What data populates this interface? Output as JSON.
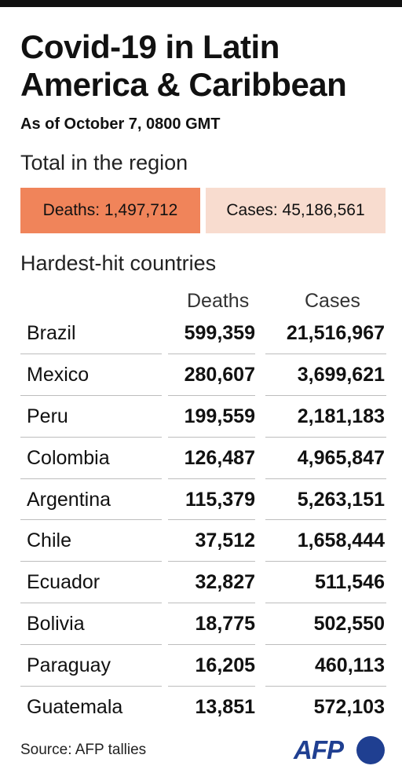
{
  "title": "Covid-19 in Latin America & Caribbean",
  "subtitle": "As of October 7, 0800 GMT",
  "region_label": "Total in the region",
  "totals": {
    "deaths_label": "Deaths: 1,497,712",
    "cases_label": "Cases: 45,186,561"
  },
  "colors": {
    "deaths_box": "#f0845a",
    "cases_box": "#f8dccf",
    "logo_text": "#1f3f91",
    "logo_circle": "#1f3f91"
  },
  "hardest_label": "Hardest-hit countries",
  "table": {
    "headers": [
      "Deaths",
      "Cases"
    ],
    "rows": [
      {
        "country": "Brazil",
        "deaths": "599,359",
        "cases": "21,516,967"
      },
      {
        "country": "Mexico",
        "deaths": "280,607",
        "cases": "3,699,621"
      },
      {
        "country": "Peru",
        "deaths": "199,559",
        "cases": "2,181,183"
      },
      {
        "country": "Colombia",
        "deaths": "126,487",
        "cases": "4,965,847"
      },
      {
        "country": "Argentina",
        "deaths": "115,379",
        "cases": "5,263,151"
      },
      {
        "country": "Chile",
        "deaths": "37,512",
        "cases": "1,658,444"
      },
      {
        "country": "Ecuador",
        "deaths": "32,827",
        "cases": "511,546"
      },
      {
        "country": "Bolivia",
        "deaths": "18,775",
        "cases": "502,550"
      },
      {
        "country": "Paraguay",
        "deaths": "16,205",
        "cases": "460,113"
      },
      {
        "country": "Guatemala",
        "deaths": "13,851",
        "cases": "572,103"
      }
    ]
  },
  "source": "Source: AFP tallies",
  "logo": {
    "text": "AFP",
    "icon": "afp-logo-circle-icon"
  }
}
